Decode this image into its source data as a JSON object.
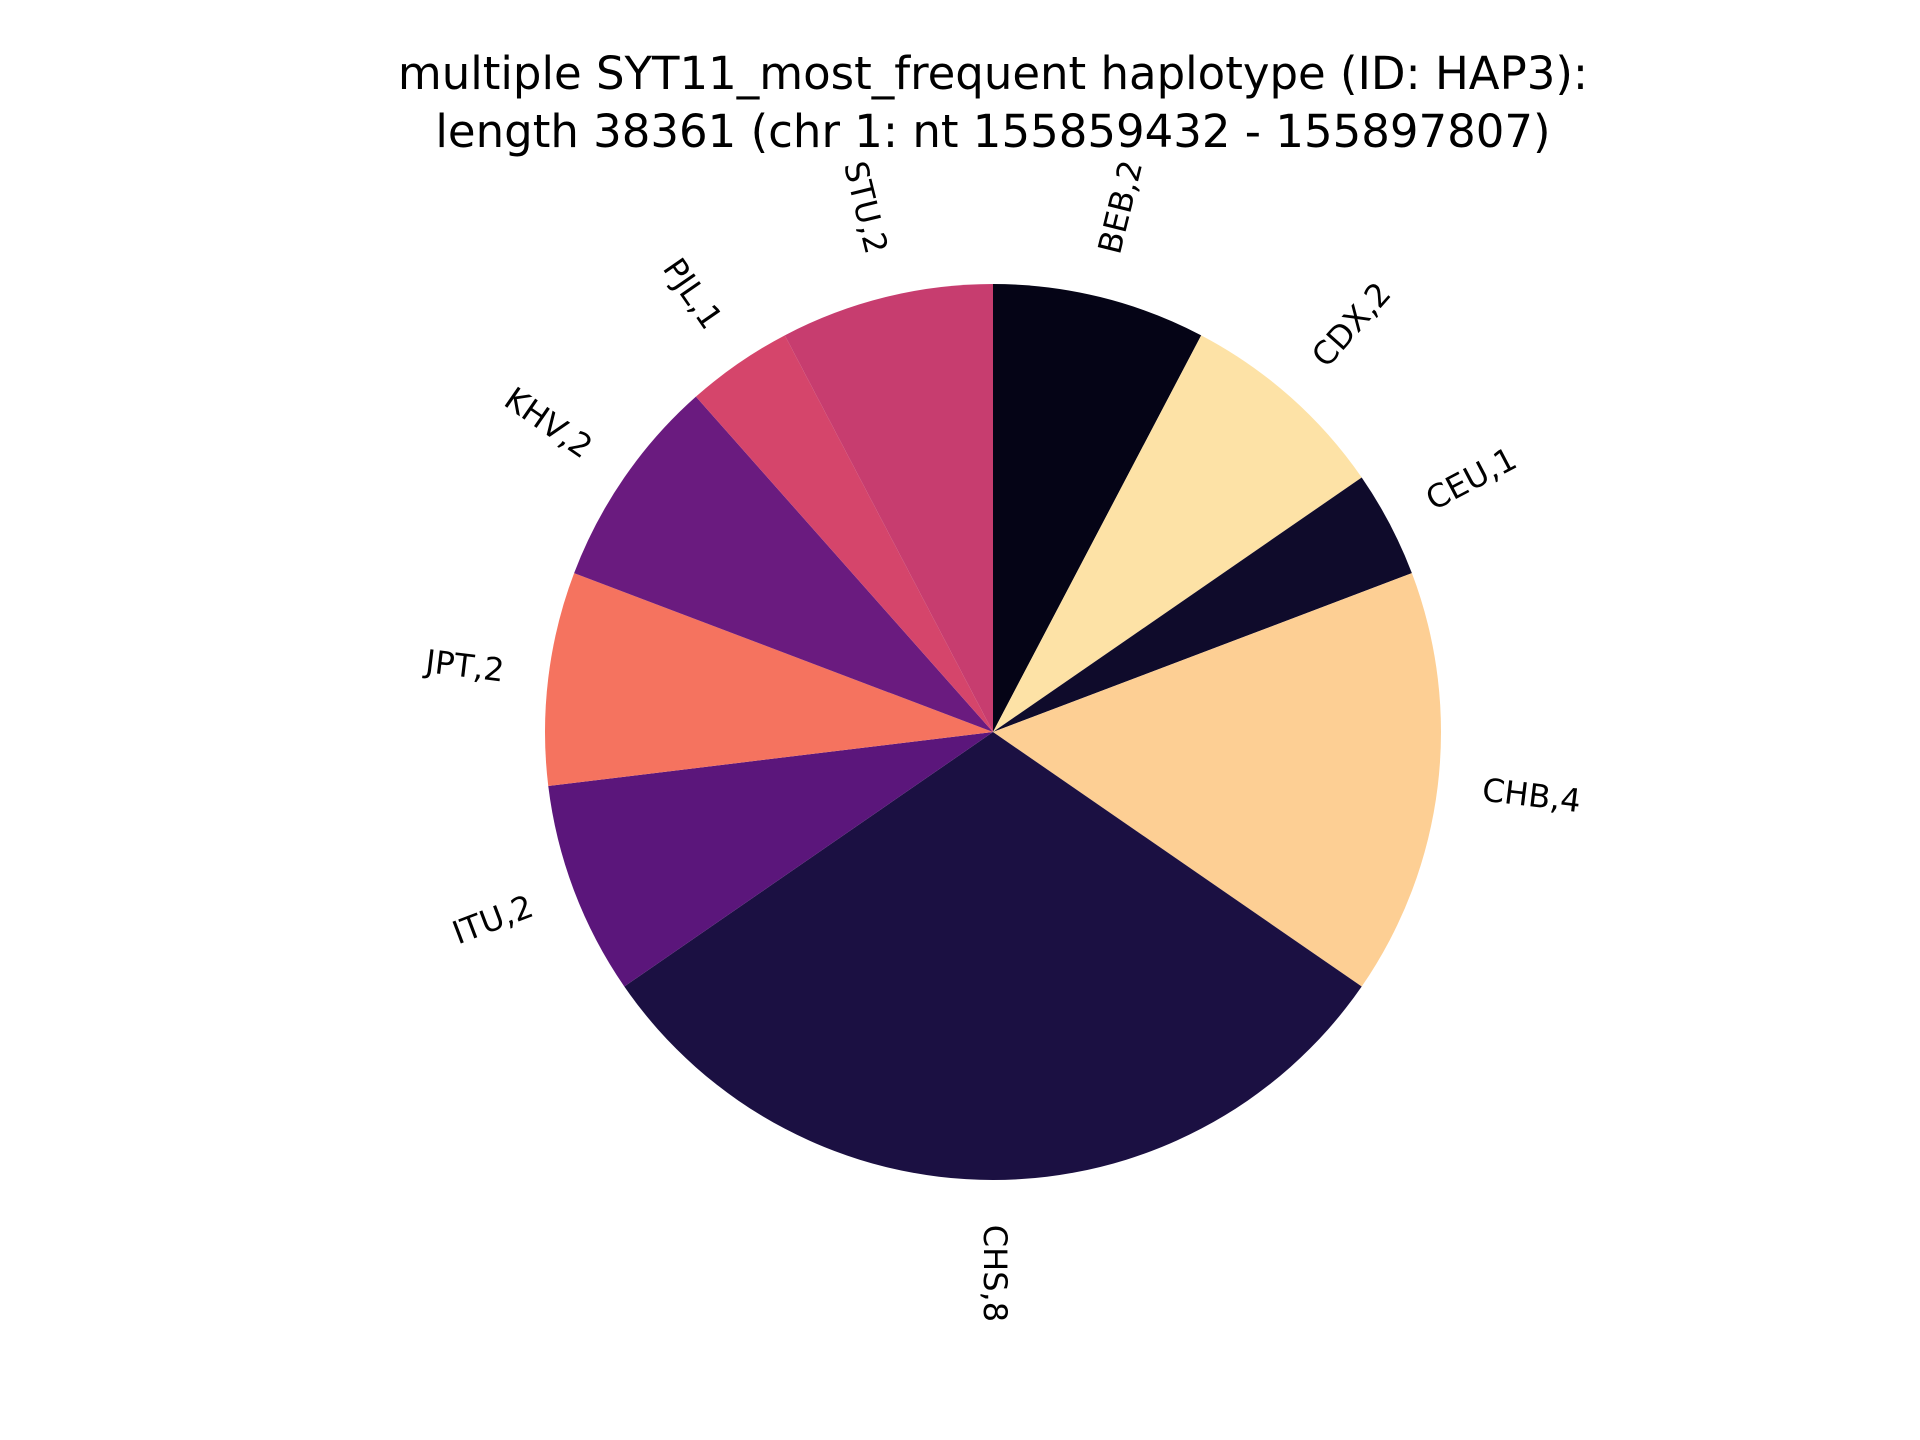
{
  "chart_data": {
    "type": "pie",
    "title": [
      "multiple SYT11_most_frequent haplotype (ID: HAP3):",
      "length 38361 (chr 1: nt 155859432 - 155897807)"
    ],
    "start_angle_deg": 90,
    "direction": "clockwise",
    "slices": [
      {
        "category": "BEB",
        "value": 2,
        "label": "BEB,2",
        "color": "#050416"
      },
      {
        "category": "CDX",
        "value": 2,
        "label": "CDX,2",
        "color": "#fde2a6"
      },
      {
        "category": "CEU",
        "value": 1,
        "label": "CEU,1",
        "color": "#0f0b2b"
      },
      {
        "category": "CHB",
        "value": 4,
        "label": "CHB,4",
        "color": "#fdcf94"
      },
      {
        "category": "CHS",
        "value": 8,
        "label": "CHS,8",
        "color": "#1b1042"
      },
      {
        "category": "ITU",
        "value": 2,
        "label": "ITU,2",
        "color": "#5b167b"
      },
      {
        "category": "JPT",
        "value": 2,
        "label": "JPT,2",
        "color": "#f5735f"
      },
      {
        "category": "KHV",
        "value": 2,
        "label": "KHV,2",
        "color": "#6a1b7f"
      },
      {
        "category": "PJL",
        "value": 1,
        "label": "PJL,1",
        "color": "#d5456b"
      },
      {
        "category": "STU",
        "value": 2,
        "label": "STU,2",
        "color": "#c73d6f"
      }
    ]
  }
}
